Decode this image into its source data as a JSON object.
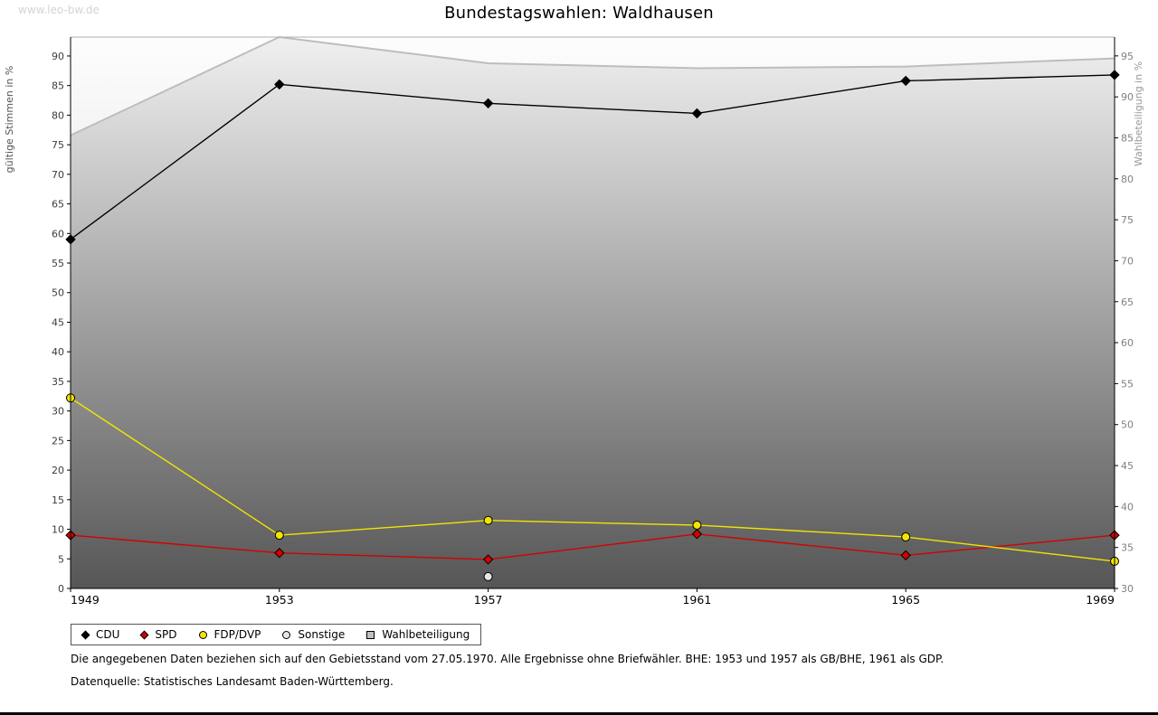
{
  "page": {
    "watermark": "www.leo-bw.de",
    "title": "Bundestagswahlen: Waldhausen",
    "footnote1": "Die angegebenen Daten beziehen sich auf den Gebietsstand vom 27.05.1970. Alle Ergebnisse ohne Briefwähler. BHE: 1953 und 1957 als GB/BHE, 1961 als GDP.",
    "footnote2": "Datenquelle: Statistisches Landesamt Baden-Württemberg."
  },
  "chart_data": {
    "type": "line",
    "title": "Bundestagswahlen: Waldhausen",
    "categories": [
      "1949",
      "1953",
      "1957",
      "1961",
      "1965",
      "1969"
    ],
    "left_axis": {
      "label": "gültige Stimmen in %",
      "min": 0,
      "max": 93.2,
      "ticks": [
        0,
        5,
        10,
        15,
        20,
        25,
        30,
        35,
        40,
        45,
        50,
        55,
        60,
        65,
        70,
        75,
        80,
        85,
        90
      ]
    },
    "right_axis": {
      "label": "Wahlbeteiligung in %",
      "min": 30,
      "max": 97.3,
      "ticks": [
        30,
        35,
        40,
        45,
        50,
        55,
        60,
        65,
        70,
        75,
        80,
        85,
        90,
        95
      ]
    },
    "grid": false,
    "legend_position": "bottom-left",
    "style": {
      "plot_bg_gradient": [
        "#fdfdfd",
        "#cbcbcb"
      ],
      "area_gradient": [
        "#f0f0f0",
        "#565656"
      ],
      "area_line_color": "#bdbdbd"
    },
    "series": [
      {
        "name": "CDU",
        "axis": "left",
        "kind": "line",
        "marker": "diamond",
        "color": "#000000",
        "values": [
          59.0,
          85.2,
          82.0,
          80.3,
          85.8,
          86.8
        ]
      },
      {
        "name": "SPD",
        "axis": "left",
        "kind": "line",
        "marker": "diamond",
        "color": "#d40000",
        "values": [
          9.0,
          6.0,
          4.9,
          9.2,
          5.6,
          9.0
        ]
      },
      {
        "name": "FDP/DVP",
        "axis": "left",
        "kind": "line",
        "marker": "circle",
        "color": "#f2e500",
        "values": [
          32.2,
          9.0,
          11.5,
          10.7,
          8.7,
          4.6
        ]
      },
      {
        "name": "Sonstige",
        "axis": "left",
        "kind": "line",
        "marker": "circle",
        "color": "#e6e6e6",
        "values": [
          null,
          null,
          2.0,
          null,
          null,
          null
        ]
      },
      {
        "name": "Wahlbeteiligung",
        "axis": "right",
        "kind": "area",
        "marker": "square",
        "color": "#c0c0c0",
        "values": [
          85.3,
          97.3,
          94.1,
          93.5,
          93.7,
          94.7
        ]
      }
    ]
  }
}
